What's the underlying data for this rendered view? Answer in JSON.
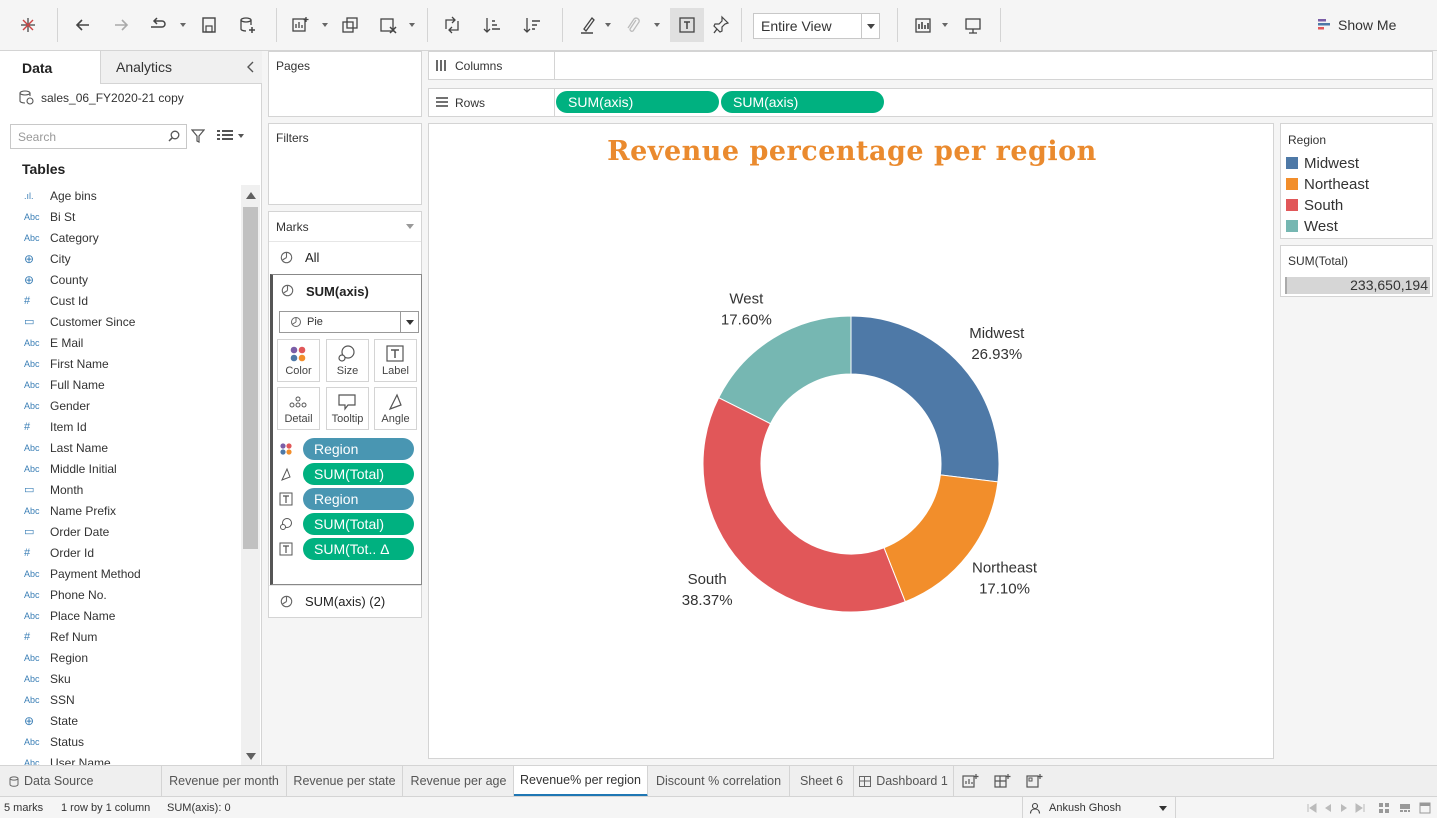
{
  "toolbar": {
    "fit_mode": "Entire View",
    "show_me_label": "Show Me",
    "icons": [
      "tableau-logo-icon",
      "undo-icon",
      "redo-icon",
      "replay-icon",
      "save-icon",
      "new-datasource-icon",
      "new-worksheet-icon",
      "duplicate-icon",
      "clear-icon",
      "swap-icon",
      "sort-ascending-icon",
      "sort-descending-icon",
      "highlight-icon",
      "group-icon",
      "labels-icon",
      "pin-icon",
      "chart-icon",
      "presentation-icon"
    ]
  },
  "data_pane": {
    "tab_data": "Data",
    "tab_analytics": "Analytics",
    "datasource_name": "sales_06_FY2020-21 copy",
    "search_placeholder": "Search",
    "tables_heading": "Tables",
    "fields": [
      {
        "type": "bins",
        "icon_text": ".ıl.",
        "name": "Age bins"
      },
      {
        "type": "string",
        "icon_text": "Abc",
        "name": "Bi St"
      },
      {
        "type": "string",
        "icon_text": "Abc",
        "name": "Category"
      },
      {
        "type": "geo",
        "icon_text": "⊕",
        "name": "City"
      },
      {
        "type": "geo",
        "icon_text": "⊕",
        "name": "County"
      },
      {
        "type": "number",
        "icon_text": "#",
        "name": "Cust Id"
      },
      {
        "type": "date",
        "icon_text": "▭",
        "name": "Customer Since"
      },
      {
        "type": "string",
        "icon_text": "Abc",
        "name": "E Mail"
      },
      {
        "type": "string",
        "icon_text": "Abc",
        "name": "First Name"
      },
      {
        "type": "string",
        "icon_text": "Abc",
        "name": "Full Name"
      },
      {
        "type": "string",
        "icon_text": "Abc",
        "name": "Gender"
      },
      {
        "type": "number",
        "icon_text": "#",
        "name": "Item Id"
      },
      {
        "type": "string",
        "icon_text": "Abc",
        "name": "Last Name"
      },
      {
        "type": "string",
        "icon_text": "Abc",
        "name": "Middle Initial"
      },
      {
        "type": "date",
        "icon_text": "▭",
        "name": "Month"
      },
      {
        "type": "string",
        "icon_text": "Abc",
        "name": "Name Prefix"
      },
      {
        "type": "date",
        "icon_text": "▭",
        "name": "Order Date"
      },
      {
        "type": "number",
        "icon_text": "#",
        "name": "Order Id"
      },
      {
        "type": "string",
        "icon_text": "Abc",
        "name": "Payment Method"
      },
      {
        "type": "string",
        "icon_text": "Abc",
        "name": "Phone No."
      },
      {
        "type": "string",
        "icon_text": "Abc",
        "name": "Place Name"
      },
      {
        "type": "number",
        "icon_text": "#",
        "name": "Ref Num"
      },
      {
        "type": "string",
        "icon_text": "Abc",
        "name": "Region"
      },
      {
        "type": "string",
        "icon_text": "Abc",
        "name": "Sku"
      },
      {
        "type": "string",
        "icon_text": "Abc",
        "name": "SSN"
      },
      {
        "type": "geo",
        "icon_text": "⊕",
        "name": "State"
      },
      {
        "type": "string",
        "icon_text": "Abc",
        "name": "Status"
      },
      {
        "type": "string",
        "icon_text": "Abc",
        "name": "User Name"
      }
    ]
  },
  "cards": {
    "pages_title": "Pages",
    "filters_title": "Filters",
    "marks_title": "Marks"
  },
  "marks": {
    "all_label": "All",
    "active_label": "SUM(axis)",
    "mark_type": "Pie",
    "buttons": [
      "Color",
      "Size",
      "Label",
      "Detail",
      "Tooltip",
      "Angle"
    ],
    "pills": [
      {
        "icon": "color-icon",
        "label": "Region",
        "kind": "dimension"
      },
      {
        "icon": "angle-icon",
        "label": "SUM(Total)",
        "kind": "measure"
      },
      {
        "icon": "label-icon",
        "label": "Region",
        "kind": "dimension"
      },
      {
        "icon": "size-icon",
        "label": "SUM(Total)",
        "kind": "measure"
      },
      {
        "icon": "label-icon",
        "label": "SUM(Tot.. Δ",
        "kind": "measure"
      }
    ],
    "second_label": "SUM(axis) (2)"
  },
  "shelves": {
    "columns_label": "Columns",
    "rows_label": "Rows",
    "rows_pills": [
      "SUM(axis)",
      "SUM(axis)"
    ]
  },
  "chart_data": {
    "type": "pie",
    "variant": "donut",
    "title": "Revenue percentage per region",
    "categories": [
      "Midwest",
      "Northeast",
      "South",
      "West"
    ],
    "values": [
      26.93,
      17.1,
      38.37,
      17.6
    ],
    "value_labels": [
      "26.93%",
      "17.10%",
      "38.37%",
      "17.60%"
    ],
    "colors": [
      "#4e79a7",
      "#f28e2b",
      "#e15759",
      "#76b7b2"
    ],
    "start": "12 o'clock",
    "direction": "clockwise"
  },
  "legend": {
    "title": "Region",
    "items": [
      {
        "label": "Midwest",
        "color": "#4e79a7"
      },
      {
        "label": "Northeast",
        "color": "#f28e2b"
      },
      {
        "label": "South",
        "color": "#e15759"
      },
      {
        "label": "West",
        "color": "#76b7b2"
      }
    ]
  },
  "summary": {
    "title": "SUM(Total)",
    "value": "233,650,194"
  },
  "tabs": [
    {
      "label": "Data Source",
      "active": false
    },
    {
      "label": "Revenue per month",
      "active": false
    },
    {
      "label": "Revenue per state",
      "active": false
    },
    {
      "label": "Revenue per age",
      "active": false
    },
    {
      "label": "Revenue% per region",
      "active": true
    },
    {
      "label": "Discount % correlation",
      "active": false
    },
    {
      "label": "Sheet 6",
      "active": false
    },
    {
      "label": "Dashboard 1",
      "active": false
    }
  ],
  "status": {
    "marks": "5 marks",
    "rows_cols": "1 row by 1 column",
    "sum": "SUM(axis): 0",
    "user": "Ankush Ghosh"
  }
}
